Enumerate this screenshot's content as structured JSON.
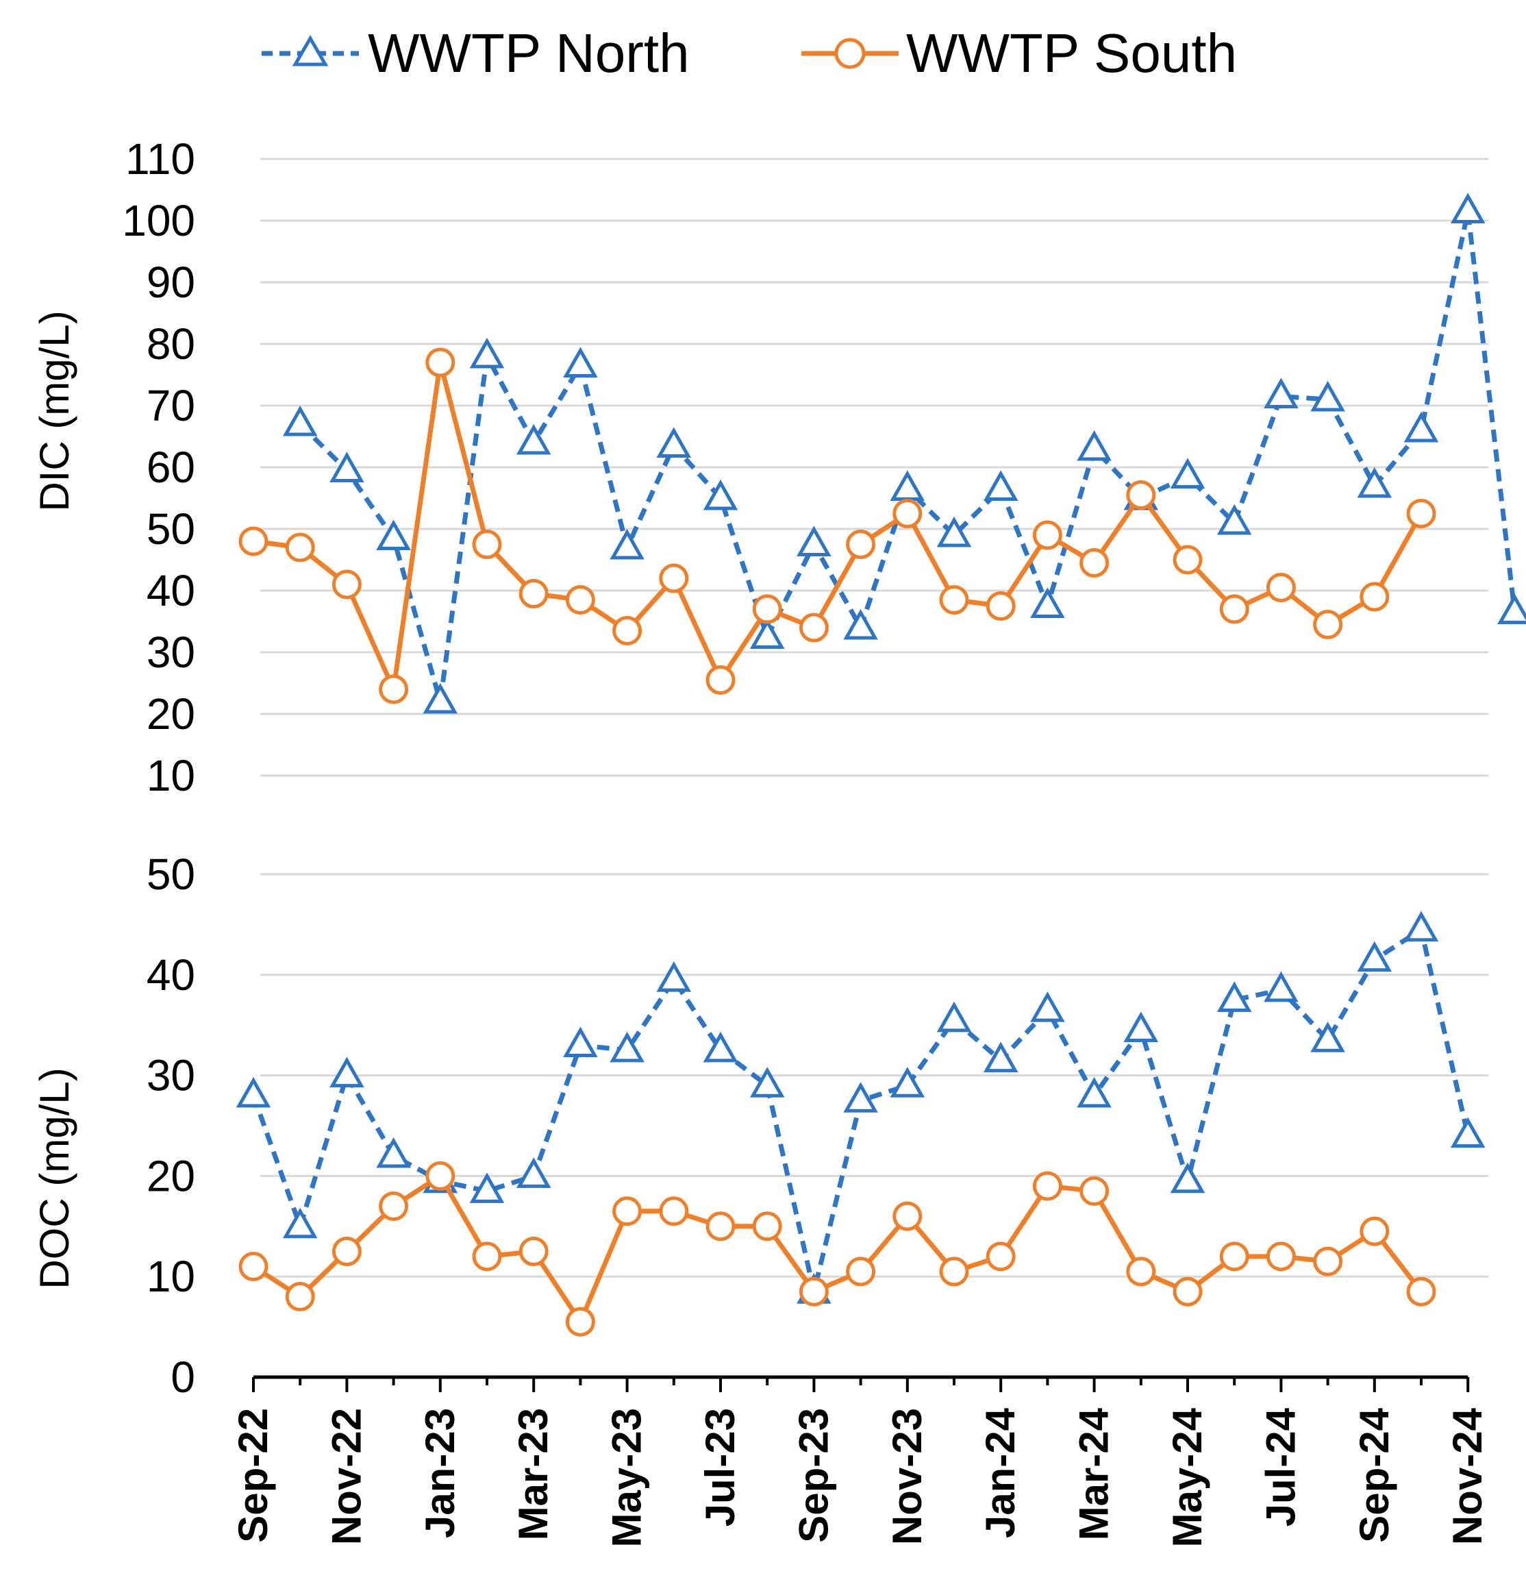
{
  "chart_data": [
    {
      "type": "line",
      "panel": "DIC",
      "ylabel": "DIC (mg/L)",
      "ylim": [
        10,
        110
      ],
      "yticks": [
        10,
        20,
        30,
        40,
        50,
        60,
        70,
        80,
        90,
        100,
        110
      ],
      "grid": true,
      "legend_position": "top",
      "colors": {
        "north": "#2E75C6",
        "south": "#F07F2A",
        "grid": "#D9D9D9",
        "axis": "#000000"
      },
      "series": [
        {
          "name": "WWTP North",
          "style": "dashed-triangle",
          "x": [
            1,
            2,
            3,
            4,
            5,
            6,
            7,
            8,
            9,
            10,
            11,
            12,
            13,
            14,
            15,
            16,
            17,
            18,
            19,
            20,
            21,
            22,
            23,
            24,
            25,
            26
          ],
          "values": [
            67,
            59.5,
            48.5,
            22,
            78,
            64,
            76.5,
            47,
            63.5,
            55,
            32.5,
            47.5,
            34,
            56.5,
            49,
            56.5,
            37.5,
            63,
            55,
            58.5,
            51,
            71.5,
            71,
            57,
            66,
            101.5
          ]
        },
        {
          "name": "WWTP South",
          "style": "solid-circle",
          "x": [
            0,
            1,
            2,
            3,
            4,
            5,
            6,
            7,
            8,
            9,
            10,
            11,
            12,
            13,
            14,
            15,
            16,
            17,
            18,
            19,
            20,
            21,
            22,
            23,
            24,
            25
          ],
          "values": [
            48,
            47,
            41,
            24,
            77,
            47.5,
            39.5,
            38.5,
            33.5,
            42,
            25.5,
            37,
            34,
            47.5,
            52.5,
            38.5,
            37.5,
            49,
            44.5,
            55.5,
            45,
            37,
            40.5,
            34.5,
            39,
            52.5
          ]
        }
      ],
      "north_extra_point": {
        "x": 27,
        "value": 36.5
      }
    },
    {
      "type": "line",
      "panel": "DOC",
      "ylabel": "DOC (mg/L)",
      "ylim": [
        0,
        50
      ],
      "yticks": [
        0,
        10,
        20,
        30,
        40,
        50
      ],
      "grid": true,
      "categories": [
        "Sep-22",
        "Nov-22",
        "Jan-23",
        "Mar-23",
        "May-23",
        "Jul-23",
        "Sep-23",
        "Nov-23",
        "Jan-24",
        "Mar-24",
        "May-24",
        "Jul-24",
        "Sep-24",
        "Nov-24"
      ],
      "category_positions": [
        0,
        2,
        4,
        6,
        8,
        10,
        12,
        14,
        16,
        18,
        20,
        22,
        24,
        26
      ],
      "series": [
        {
          "name": "WWTP North",
          "style": "dashed-triangle",
          "x": [
            0,
            1,
            2,
            3,
            4,
            5,
            6,
            7,
            8,
            9,
            10,
            11,
            12,
            13,
            14,
            15,
            16,
            17,
            18,
            19,
            20,
            21,
            22,
            23,
            24,
            25,
            26
          ],
          "values": [
            28,
            15,
            30,
            22,
            19.5,
            18.5,
            20,
            33,
            32.5,
            39.5,
            32.5,
            29,
            8.5,
            27.5,
            29,
            35.5,
            31.5,
            36.5,
            28,
            34.5,
            19.5,
            37.5,
            38.5,
            33.5,
            41.5,
            44.5,
            24
          ]
        },
        {
          "name": "WWTP South",
          "style": "solid-circle",
          "x": [
            0,
            1,
            2,
            3,
            4,
            5,
            6,
            7,
            8,
            9,
            10,
            11,
            12,
            13,
            14,
            15,
            16,
            17,
            18,
            19,
            20,
            21,
            22,
            23,
            24,
            25
          ],
          "values": [
            11,
            8,
            12.5,
            17,
            20,
            12,
            12.5,
            5.5,
            16.5,
            16.5,
            15,
            15,
            8.5,
            10.5,
            16,
            10.5,
            12,
            19,
            18.5,
            10.5,
            8.5,
            12,
            12,
            11.5,
            14.5,
            8.5
          ]
        }
      ]
    }
  ],
  "legend": [
    {
      "name": "WWTP North"
    },
    {
      "name": "WWTP South"
    }
  ]
}
